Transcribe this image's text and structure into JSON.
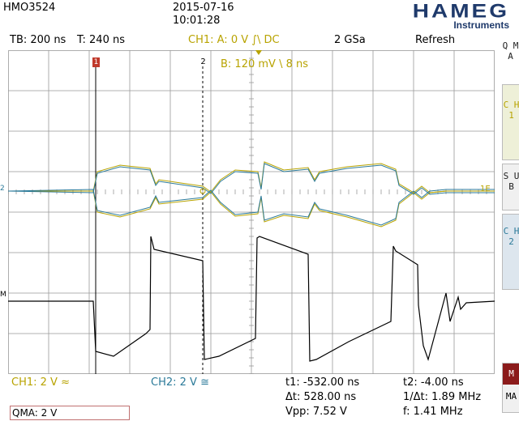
{
  "header": {
    "device": "HMO3524",
    "date": "2015-07-16",
    "time": "10:01:28",
    "logo_text": "HAMEG",
    "logo_sub": "Instruments"
  },
  "status": {
    "timebase": "TB: 200 ns",
    "trigger_time": "T: 240 ns",
    "trigger": "CH1: A: 0 V ∫\\ DC",
    "samplerate": "2 GSa",
    "mode": "Refresh",
    "trigger_b": "B: 120 mV \\ 8 ns"
  },
  "markers": {
    "cursor1": "1",
    "cursor2": "2",
    "ch_left": "2",
    "math_left": "M",
    "ch_right": "1E"
  },
  "sidebar": {
    "qma": "Q M A",
    "ch1": "C H 1",
    "sub": "S U B",
    "ch2": "C H 2",
    "m": "M",
    "ma": "MA"
  },
  "bottom": {
    "ch1": "CH1: 2 V ≈",
    "ch2": "CH2: 2 V ≅",
    "t1": "t1: -532.00 ns",
    "t2": "t2: -4.00 ns",
    "dt": "Δt: 528.00 ns",
    "inv_dt": "1/Δt: 1.89 MHz",
    "vpp": "Vpp: 7.52 V",
    "freq": "f: 1.41 MHz",
    "qma": "QMA: 2 V"
  },
  "colors": {
    "ch1": "#b8a300",
    "ch2": "#2b7a99",
    "math": "#000000",
    "cursor": "#c0392b"
  }
}
